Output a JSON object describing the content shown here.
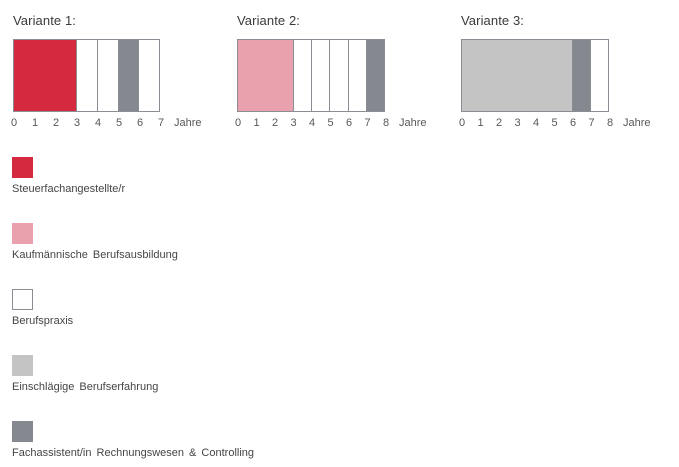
{
  "page": {
    "background": "#ffffff"
  },
  "chart_data": {
    "type": "bar",
    "orientation": "horizontal",
    "xlabel": "Jahre",
    "grid": false,
    "legend_position": "bottom-left",
    "legend": [
      {
        "label": "Steuerfachangestellte/r",
        "color": "#d4293f"
      },
      {
        "label": "Kaufmännische Berufsausbildung",
        "color": "#e8a1ad"
      },
      {
        "label": "Berufspraxis",
        "color": "#ffffff"
      },
      {
        "label": "Einschlägige Berufserfahrung",
        "color": "#c4c4c5"
      },
      {
        "label": "Fachassistent/in Rechnungswesen & Controlling",
        "color": "#85888f"
      }
    ],
    "series": [
      {
        "name": "Variante 1",
        "title": "Variante 1:",
        "xlim": [
          0,
          7
        ],
        "ticks": [
          "0",
          "1",
          "2",
          "3",
          "4",
          "5",
          "6",
          "7"
        ],
        "segments": [
          {
            "category": "Steuerfachangestellte/r",
            "start": 0,
            "end": 3
          },
          {
            "category": "Berufspraxis",
            "start": 3,
            "end": 4
          },
          {
            "category": "Berufspraxis",
            "start": 4,
            "end": 5
          },
          {
            "category": "Fachassistent/in Rechnungswesen & Controlling",
            "start": 5,
            "end": 6
          },
          {
            "category": "Berufspraxis",
            "start": 6,
            "end": 7
          }
        ]
      },
      {
        "name": "Variante 2",
        "title": "Variante 2:",
        "xlim": [
          0,
          8
        ],
        "ticks": [
          "0",
          "1",
          "2",
          "3",
          "4",
          "5",
          "6",
          "7",
          "8"
        ],
        "segments": [
          {
            "category": "Kaufmännische Berufsausbildung",
            "start": 0,
            "end": 3
          },
          {
            "category": "Berufspraxis",
            "start": 3,
            "end": 4
          },
          {
            "category": "Berufspraxis",
            "start": 4,
            "end": 5
          },
          {
            "category": "Berufspraxis",
            "start": 5,
            "end": 6
          },
          {
            "category": "Berufspraxis",
            "start": 6,
            "end": 7
          },
          {
            "category": "Fachassistent/in Rechnungswesen & Controlling",
            "start": 7,
            "end": 8
          }
        ]
      },
      {
        "name": "Variante 3",
        "title": "Variante 3:",
        "xlim": [
          0,
          8
        ],
        "ticks": [
          "0",
          "1",
          "2",
          "3",
          "4",
          "5",
          "6",
          "7",
          "8"
        ],
        "segments": [
          {
            "category": "Einschlägige Berufserfahrung",
            "start": 0,
            "end": 6
          },
          {
            "category": "Fachassistent/in Rechnungswesen & Controlling",
            "start": 6,
            "end": 7
          },
          {
            "category": "Berufspraxis",
            "start": 7,
            "end": 8
          }
        ]
      }
    ]
  }
}
